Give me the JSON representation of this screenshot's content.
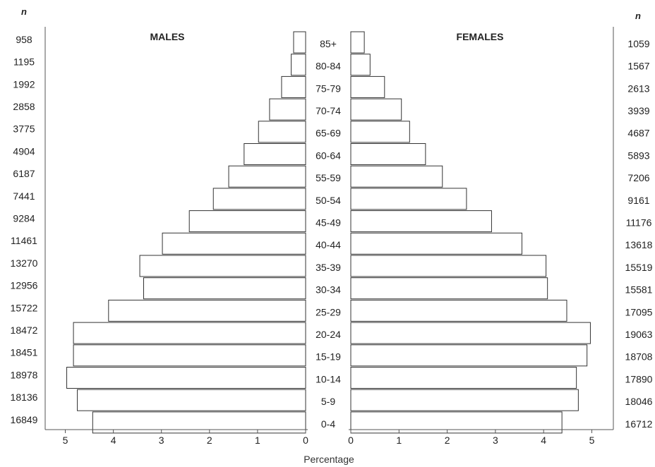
{
  "chart_data": {
    "type": "bar",
    "orientation": "horizontal",
    "layout": "population-pyramid",
    "xlabel": "Percentage",
    "n_header": "n",
    "categories": [
      "85+",
      "80-84",
      "75-79",
      "70-74",
      "65-69",
      "60-64",
      "55-59",
      "50-54",
      "45-49",
      "40-44",
      "35-39",
      "30-34",
      "25-29",
      "20-24",
      "15-19",
      "10-14",
      "5-9",
      "0-4"
    ],
    "series": [
      {
        "name": "MALES",
        "values": [
          0.25,
          0.3,
          0.5,
          0.75,
          0.98,
          1.28,
          1.6,
          1.92,
          2.42,
          2.98,
          3.45,
          3.37,
          4.1,
          4.83,
          4.83,
          4.97,
          4.75,
          4.43
        ],
        "n": [
          "958",
          "1195",
          "1992",
          "2858",
          "3775",
          "4904",
          "6187",
          "7441",
          "9284",
          "11461",
          "13270",
          "12956",
          "15722",
          "18472",
          "18451",
          "18978",
          "18136",
          "16849"
        ]
      },
      {
        "name": "FEMALES",
        "values": [
          0.28,
          0.4,
          0.7,
          1.05,
          1.22,
          1.55,
          1.9,
          2.4,
          2.92,
          3.55,
          4.05,
          4.08,
          4.48,
          4.97,
          4.9,
          4.68,
          4.72,
          4.38
        ],
        "n": [
          "1059",
          "1567",
          "2613",
          "3939",
          "4687",
          "5893",
          "7206",
          "9161",
          "11176",
          "13618",
          "15519",
          "15581",
          "17095",
          "19063",
          "18708",
          "17890",
          "18046",
          "16712"
        ]
      }
    ],
    "xlim": [
      0,
      5
    ],
    "xticks": [
      "0",
      "1",
      "2",
      "3",
      "4",
      "5"
    ],
    "grid": false,
    "legend": "none"
  }
}
